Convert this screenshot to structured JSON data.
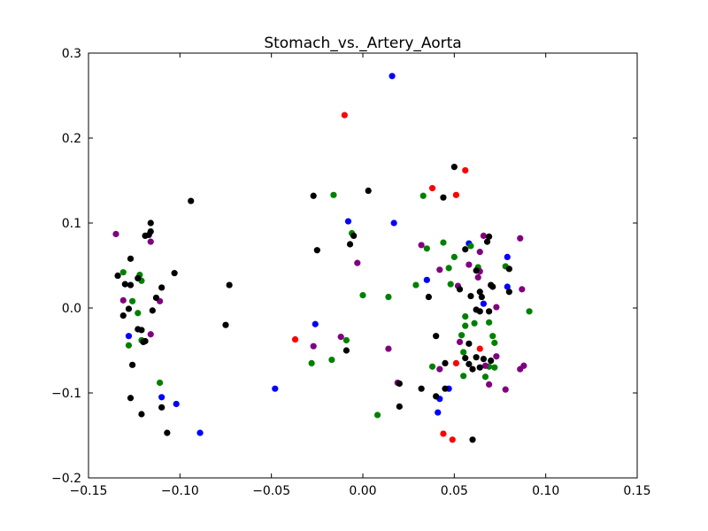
{
  "chart_data": {
    "type": "scatter",
    "title": "Stomach_vs._Artery_Aorta",
    "xlabel": "",
    "ylabel": "",
    "xlim": [
      -0.15,
      0.15
    ],
    "ylim": [
      -0.2,
      0.3
    ],
    "x_ticks": [
      -0.15,
      -0.1,
      -0.05,
      0.0,
      0.05,
      0.1,
      0.15
    ],
    "x_tick_labels": [
      "−0.15",
      "−0.10",
      "−0.05",
      "0.00",
      "0.05",
      "0.10",
      "0.15"
    ],
    "y_ticks": [
      -0.2,
      -0.1,
      0.0,
      0.1,
      0.2,
      0.3
    ],
    "y_tick_labels": [
      "−0.2",
      "−0.1",
      "0.0",
      "0.1",
      "0.2",
      "0.3"
    ],
    "grid": false,
    "legend": "none",
    "series": [
      {
        "name": "blue",
        "color": "#0000ff",
        "points": [
          [
            0.016,
            0.273
          ],
          [
            -0.008,
            0.102
          ],
          [
            0.017,
            0.1
          ],
          [
            0.035,
            0.033
          ],
          [
            0.058,
            0.076
          ],
          [
            0.066,
            0.005
          ],
          [
            0.079,
            0.06
          ],
          [
            0.079,
            0.025
          ],
          [
            -0.128,
            -0.033
          ],
          [
            -0.026,
            -0.019
          ],
          [
            -0.048,
            -0.095
          ],
          [
            -0.11,
            -0.105
          ],
          [
            -0.102,
            -0.113
          ],
          [
            -0.089,
            -0.147
          ],
          [
            0.042,
            -0.107
          ],
          [
            0.041,
            -0.123
          ],
          [
            0.047,
            -0.095
          ]
        ]
      },
      {
        "name": "red",
        "color": "#ff0000",
        "points": [
          [
            -0.01,
            0.227
          ],
          [
            0.056,
            0.162
          ],
          [
            0.038,
            0.141
          ],
          [
            0.051,
            0.133
          ],
          [
            -0.037,
            -0.037
          ],
          [
            0.051,
            -0.065
          ],
          [
            0.064,
            -0.048
          ],
          [
            0.044,
            -0.148
          ],
          [
            0.049,
            -0.155
          ]
        ]
      },
      {
        "name": "green",
        "color": "#008000",
        "points": [
          [
            -0.016,
            0.133
          ],
          [
            0.033,
            0.132
          ],
          [
            -0.006,
            0.088
          ],
          [
            0.035,
            0.07
          ],
          [
            0.044,
            0.077
          ],
          [
            0.059,
            0.073
          ],
          [
            0.05,
            0.06
          ],
          [
            0.047,
            0.047
          ],
          [
            0.063,
            0.048
          ],
          [
            0.078,
            0.049
          ],
          [
            0.029,
            0.027
          ],
          [
            0.048,
            0.028
          ],
          [
            0.0,
            0.015
          ],
          [
            0.014,
            0.013
          ],
          [
            -0.131,
            0.042
          ],
          [
            -0.122,
            0.039
          ],
          [
            -0.121,
            0.032
          ],
          [
            -0.126,
            0.008
          ],
          [
            -0.123,
            -0.006
          ],
          [
            -0.128,
            -0.044
          ],
          [
            -0.121,
            -0.038
          ],
          [
            -0.009,
            -0.038
          ],
          [
            -0.017,
            -0.061
          ],
          [
            -0.028,
            -0.065
          ],
          [
            0.056,
            -0.01
          ],
          [
            0.061,
            -0.018
          ],
          [
            0.056,
            -0.021
          ],
          [
            0.069,
            -0.017
          ],
          [
            0.054,
            -0.032
          ],
          [
            0.071,
            -0.033
          ],
          [
            0.072,
            -0.041
          ],
          [
            0.055,
            -0.052
          ],
          [
            0.038,
            -0.069
          ],
          [
            0.055,
            -0.08
          ],
          [
            0.069,
            -0.069
          ],
          [
            0.072,
            -0.07
          ],
          [
            0.067,
            -0.081
          ],
          [
            0.091,
            -0.004
          ],
          [
            -0.111,
            -0.088
          ],
          [
            0.008,
            -0.126
          ]
        ]
      },
      {
        "name": "purple",
        "color": "#800080",
        "points": [
          [
            -0.135,
            0.087
          ],
          [
            -0.116,
            0.078
          ],
          [
            0.032,
            0.074
          ],
          [
            0.066,
            0.085
          ],
          [
            0.086,
            0.082
          ],
          [
            0.064,
            0.066
          ],
          [
            0.058,
            0.051
          ],
          [
            0.042,
            0.045
          ],
          [
            0.064,
            0.043
          ],
          [
            0.063,
            0.036
          ],
          [
            0.052,
            0.026
          ],
          [
            0.087,
            0.022
          ],
          [
            -0.003,
            0.053
          ],
          [
            -0.131,
            0.009
          ],
          [
            -0.111,
            0.008
          ],
          [
            -0.116,
            -0.031
          ],
          [
            0.073,
            0.001
          ],
          [
            -0.012,
            -0.034
          ],
          [
            0.014,
            -0.048
          ],
          [
            -0.027,
            -0.045
          ],
          [
            0.053,
            -0.04
          ],
          [
            0.073,
            -0.057
          ],
          [
            0.067,
            -0.068
          ],
          [
            0.042,
            -0.072
          ],
          [
            0.086,
            -0.072
          ],
          [
            0.088,
            -0.068
          ],
          [
            0.069,
            -0.09
          ],
          [
            0.078,
            -0.096
          ],
          [
            0.019,
            -0.088
          ]
        ]
      },
      {
        "name": "black",
        "color": "#000000",
        "points": [
          [
            0.05,
            0.166
          ],
          [
            0.003,
            0.138
          ],
          [
            -0.027,
            0.132
          ],
          [
            0.044,
            0.13
          ],
          [
            -0.094,
            0.126
          ],
          [
            -0.116,
            0.1
          ],
          [
            -0.116,
            0.09
          ],
          [
            -0.117,
            0.086
          ],
          [
            -0.119,
            0.085
          ],
          [
            -0.005,
            0.085
          ],
          [
            -0.007,
            0.075
          ],
          [
            -0.025,
            0.068
          ],
          [
            0.069,
            0.084
          ],
          [
            0.068,
            0.078
          ],
          [
            0.056,
            0.069
          ],
          [
            0.062,
            0.044
          ],
          [
            0.08,
            0.046
          ],
          [
            -0.127,
            0.058
          ],
          [
            -0.103,
            0.041
          ],
          [
            -0.134,
            0.038
          ],
          [
            -0.123,
            0.035
          ],
          [
            -0.13,
            0.028
          ],
          [
            -0.127,
            0.027
          ],
          [
            -0.11,
            0.024
          ],
          [
            -0.073,
            0.027
          ],
          [
            -0.113,
            0.012
          ],
          [
            0.036,
            0.013
          ],
          [
            0.053,
            0.022
          ],
          [
            0.059,
            0.014
          ],
          [
            0.064,
            0.019
          ],
          [
            0.065,
            0.013
          ],
          [
            0.07,
            0.027
          ],
          [
            0.071,
            0.025
          ],
          [
            0.08,
            0.019
          ],
          [
            -0.128,
            -0.001
          ],
          [
            -0.115,
            -0.003
          ],
          [
            -0.131,
            -0.009
          ],
          [
            0.062,
            -0.002
          ],
          [
            0.064,
            -0.004
          ],
          [
            0.069,
            -0.004
          ],
          [
            -0.123,
            -0.025
          ],
          [
            -0.121,
            -0.026
          ],
          [
            -0.075,
            -0.02
          ],
          [
            -0.12,
            -0.04
          ],
          [
            -0.119,
            -0.039
          ],
          [
            -0.126,
            -0.067
          ],
          [
            0.04,
            -0.033
          ],
          [
            0.058,
            -0.042
          ],
          [
            -0.009,
            -0.05
          ],
          [
            0.045,
            -0.065
          ],
          [
            0.056,
            -0.059
          ],
          [
            0.058,
            -0.066
          ],
          [
            0.062,
            -0.058
          ],
          [
            0.066,
            -0.06
          ],
          [
            0.06,
            -0.072
          ],
          [
            0.064,
            -0.07
          ],
          [
            0.07,
            -0.062
          ],
          [
            0.032,
            -0.095
          ],
          [
            0.045,
            -0.095
          ],
          [
            0.02,
            -0.089
          ],
          [
            0.04,
            -0.104
          ],
          [
            -0.127,
            -0.106
          ],
          [
            -0.11,
            -0.117
          ],
          [
            0.02,
            -0.116
          ],
          [
            -0.121,
            -0.125
          ],
          [
            -0.107,
            -0.147
          ],
          [
            0.06,
            -0.155
          ]
        ]
      }
    ]
  }
}
